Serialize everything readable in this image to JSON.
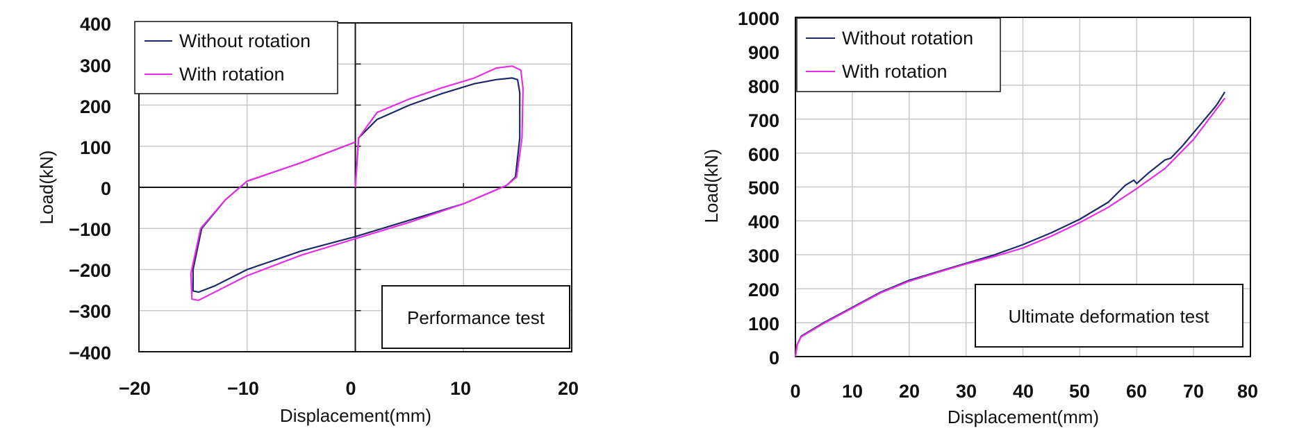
{
  "chart_data": [
    {
      "type": "line",
      "annotation": "Performance test",
      "xlabel": "Displacement(mm)",
      "ylabel": "Load(kN)",
      "xlim": [
        -20,
        20
      ],
      "ylim": [
        -400,
        400
      ],
      "xticks": [
        "−20",
        "−10",
        "0",
        "10",
        "20"
      ],
      "yticks": [
        "400",
        "300",
        "200",
        "100",
        "0",
        "−100",
        "−200",
        "−300",
        "−400"
      ],
      "grid": true,
      "legend": "top-left",
      "series": [
        {
          "name": "Without rotation",
          "color": "#1b2a66",
          "x": [
            0,
            0.3,
            2,
            5,
            8,
            11,
            13,
            14.5,
            15.0,
            15.2,
            15.2,
            14.8,
            14.0,
            12.5,
            10,
            5,
            0,
            -5,
            -10,
            -13,
            -14.5,
            -15.0,
            -15.0,
            -14.2,
            -12,
            -10,
            -5,
            0
          ],
          "y": [
            0,
            120,
            165,
            200,
            228,
            252,
            262,
            266,
            262,
            230,
            120,
            25,
            5,
            -12,
            -40,
            -80,
            -120,
            -155,
            -200,
            -240,
            -255,
            -252,
            -200,
            -100,
            -30,
            15,
            60,
            110
          ]
        },
        {
          "name": "With rotation",
          "color": "#e62ee6",
          "x": [
            0,
            0.3,
            2,
            5,
            8,
            11,
            13,
            14.5,
            15.3,
            15.5,
            15.4,
            14.9,
            14.0,
            12.5,
            10,
            5,
            0,
            -5,
            -10,
            -13,
            -14.5,
            -15.1,
            -15.2,
            -14.3,
            -12,
            -10,
            -5,
            0
          ],
          "y": [
            0,
            120,
            182,
            215,
            242,
            266,
            290,
            295,
            285,
            240,
            120,
            25,
            5,
            -12,
            -40,
            -85,
            -125,
            -165,
            -215,
            -255,
            -275,
            -272,
            -210,
            -100,
            -30,
            15,
            60,
            110
          ]
        }
      ]
    },
    {
      "type": "line",
      "annotation": "Ultimate deformation test",
      "xlabel": "Displacement(mm)",
      "ylabel": "Load(kN)",
      "xlim": [
        0,
        80
      ],
      "ylim": [
        0,
        1000
      ],
      "xticks": [
        "0",
        "10",
        "20",
        "30",
        "40",
        "50",
        "60",
        "70",
        "80"
      ],
      "yticks": [
        "1000",
        "900",
        "800",
        "700",
        "600",
        "500",
        "400",
        "300",
        "200",
        "100",
        "0"
      ],
      "grid": true,
      "legend": "top-left",
      "series": [
        {
          "name": "Without rotation",
          "color": "#1b2a66",
          "x": [
            0,
            0.3,
            1,
            5,
            10,
            15,
            20,
            25,
            30,
            35,
            40,
            45,
            50,
            55,
            58,
            59.5,
            60,
            62,
            65,
            66,
            68,
            70,
            72,
            74,
            75.5
          ],
          "y": [
            0,
            35,
            60,
            100,
            145,
            190,
            225,
            250,
            275,
            300,
            330,
            365,
            405,
            455,
            505,
            520,
            510,
            540,
            580,
            585,
            620,
            660,
            700,
            740,
            780
          ]
        },
        {
          "name": "With rotation",
          "color": "#e62ee6",
          "x": [
            0,
            0.3,
            1,
            5,
            10,
            15,
            20,
            25,
            30,
            35,
            40,
            45,
            50,
            55,
            60,
            65,
            70,
            75.5
          ],
          "y": [
            0,
            35,
            58,
            98,
            143,
            188,
            222,
            248,
            273,
            295,
            320,
            355,
            395,
            440,
            495,
            555,
            640,
            762
          ]
        }
      ]
    }
  ]
}
